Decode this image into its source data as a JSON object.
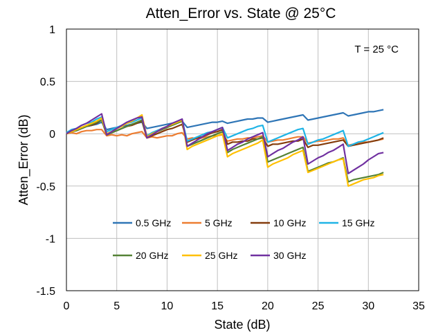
{
  "chart_data": {
    "type": "line",
    "title": "Atten_Error vs. State @ 25°C",
    "xlabel": "State (dB)",
    "ylabel": "Atten_Error (dB)",
    "xlim": [
      0,
      35
    ],
    "ylim": [
      -1.5,
      1
    ],
    "xticks": [
      0,
      5,
      10,
      15,
      20,
      25,
      30,
      35
    ],
    "yticks": [
      1,
      0.5,
      0,
      -0.5,
      -1,
      -1.5
    ],
    "xtick_labels": [
      "0",
      "5",
      "10",
      "15",
      "20",
      "25",
      "30",
      "35"
    ],
    "ytick_labels": [
      "1",
      "0.5",
      "0",
      "-0.5",
      "-1",
      "-1.5"
    ],
    "grid": true,
    "legend_position": "lower-center",
    "annotation": "T = 25 °C",
    "x": [
      0,
      0.5,
      1,
      1.5,
      2,
      2.5,
      3,
      3.5,
      4,
      4.5,
      5,
      5.5,
      6,
      6.5,
      7,
      7.5,
      8,
      8.5,
      9,
      9.5,
      10,
      10.5,
      11,
      11.5,
      12,
      12.5,
      13,
      13.5,
      14,
      14.5,
      15,
      15.5,
      16,
      16.5,
      17,
      17.5,
      18,
      18.5,
      19,
      19.5,
      20,
      20.5,
      21,
      21.5,
      22,
      22.5,
      23,
      23.5,
      24,
      24.5,
      25,
      25.5,
      26,
      26.5,
      27,
      27.5,
      28,
      28.5,
      29,
      29.5,
      30,
      30.5,
      31,
      31.5
    ],
    "series": [
      {
        "name": "0.5 GHz",
        "color": "#2E75B6",
        "values": [
          0.01,
          0.03,
          0.04,
          0.05,
          0.07,
          0.08,
          0.09,
          0.11,
          0.04,
          0.05,
          0.06,
          0.07,
          0.08,
          0.09,
          0.1,
          0.11,
          0.05,
          0.06,
          0.07,
          0.08,
          0.09,
          0.1,
          0.11,
          0.12,
          0.06,
          0.07,
          0.08,
          0.09,
          0.1,
          0.11,
          0.11,
          0.12,
          0.1,
          0.11,
          0.12,
          0.13,
          0.14,
          0.14,
          0.15,
          0.15,
          0.11,
          0.12,
          0.13,
          0.14,
          0.15,
          0.16,
          0.17,
          0.18,
          0.13,
          0.14,
          0.15,
          0.16,
          0.17,
          0.18,
          0.19,
          0.2,
          0.17,
          0.18,
          0.19,
          0.2,
          0.21,
          0.21,
          0.22,
          0.23
        ]
      },
      {
        "name": "5 GHz",
        "color": "#ED7D31",
        "values": [
          0.0,
          0.01,
          0.0,
          0.02,
          0.03,
          0.03,
          0.04,
          0.04,
          -0.02,
          -0.01,
          -0.02,
          -0.01,
          -0.02,
          0.0,
          0.01,
          0.02,
          -0.04,
          -0.03,
          -0.04,
          -0.03,
          -0.02,
          -0.02,
          0.0,
          0.01,
          -0.05,
          -0.04,
          -0.05,
          -0.04,
          -0.03,
          -0.02,
          -0.02,
          -0.01,
          -0.07,
          -0.06,
          -0.05,
          -0.05,
          -0.04,
          -0.04,
          -0.03,
          -0.02,
          -0.08,
          -0.07,
          -0.06,
          -0.06,
          -0.05,
          -0.04,
          -0.03,
          -0.03,
          -0.09,
          -0.08,
          -0.07,
          -0.07,
          -0.06,
          -0.05,
          -0.05,
          -0.04,
          -0.11,
          -0.1,
          -0.09,
          -0.08,
          -0.08,
          -0.07,
          -0.06,
          -0.05
        ]
      },
      {
        "name": "10 GHz",
        "color": "#843C0C",
        "values": [
          0.0,
          0.02,
          0.03,
          0.05,
          0.07,
          0.08,
          0.1,
          0.13,
          -0.01,
          0.01,
          0.03,
          0.05,
          0.07,
          0.08,
          0.1,
          0.12,
          -0.04,
          -0.02,
          0.0,
          0.02,
          0.04,
          0.05,
          0.07,
          0.09,
          -0.08,
          -0.06,
          -0.04,
          -0.03,
          -0.01,
          0.01,
          0.02,
          0.04,
          -0.1,
          -0.08,
          -0.08,
          -0.07,
          -0.07,
          -0.05,
          -0.05,
          -0.04,
          -0.12,
          -0.1,
          -0.1,
          -0.09,
          -0.08,
          -0.07,
          -0.07,
          -0.05,
          -0.13,
          -0.11,
          -0.11,
          -0.1,
          -0.09,
          -0.08,
          -0.07,
          -0.06,
          -0.12,
          -0.11,
          -0.1,
          -0.09,
          -0.08,
          -0.07,
          -0.06,
          -0.04
        ]
      },
      {
        "name": "15 GHz",
        "color": "#1FB4E6",
        "values": [
          0.01,
          0.04,
          0.05,
          0.08,
          0.1,
          0.11,
          0.14,
          0.16,
          0.02,
          0.04,
          0.06,
          0.08,
          0.1,
          0.11,
          0.13,
          0.15,
          -0.02,
          0.01,
          0.03,
          0.05,
          0.07,
          0.09,
          0.11,
          0.13,
          -0.07,
          -0.05,
          -0.03,
          -0.01,
          0.01,
          0.02,
          0.04,
          0.06,
          -0.04,
          -0.02,
          0.0,
          0.02,
          0.04,
          0.05,
          0.07,
          0.08,
          -0.08,
          -0.06,
          -0.04,
          -0.02,
          0.0,
          0.02,
          0.04,
          0.05,
          -0.1,
          -0.08,
          -0.06,
          -0.05,
          -0.03,
          -0.01,
          0.01,
          0.03,
          -0.12,
          -0.1,
          -0.08,
          -0.07,
          -0.05,
          -0.03,
          -0.01,
          0.01
        ]
      },
      {
        "name": "20 GHz",
        "color": "#548235",
        "values": [
          0.0,
          0.02,
          0.03,
          0.05,
          0.07,
          0.09,
          0.11,
          0.13,
          -0.01,
          0.01,
          0.03,
          0.05,
          0.07,
          0.09,
          0.11,
          0.13,
          -0.03,
          0.0,
          0.02,
          0.04,
          0.06,
          0.08,
          0.1,
          0.12,
          -0.12,
          -0.1,
          -0.08,
          -0.06,
          -0.04,
          -0.02,
          0.0,
          0.02,
          -0.18,
          -0.15,
          -0.13,
          -0.11,
          -0.09,
          -0.07,
          -0.05,
          -0.03,
          -0.27,
          -0.25,
          -0.23,
          -0.21,
          -0.19,
          -0.17,
          -0.15,
          -0.13,
          -0.36,
          -0.34,
          -0.32,
          -0.3,
          -0.28,
          -0.27,
          -0.25,
          -0.23,
          -0.46,
          -0.44,
          -0.43,
          -0.42,
          -0.41,
          -0.4,
          -0.39,
          -0.37
        ]
      },
      {
        "name": "25 GHz",
        "color": "#FFC000",
        "values": [
          0.0,
          0.02,
          0.04,
          0.06,
          0.08,
          0.1,
          0.12,
          0.15,
          0.0,
          0.02,
          0.05,
          0.07,
          0.1,
          0.12,
          0.15,
          0.18,
          -0.03,
          0.0,
          0.02,
          0.05,
          0.07,
          0.09,
          0.11,
          0.13,
          -0.15,
          -0.12,
          -0.1,
          -0.08,
          -0.06,
          -0.04,
          -0.02,
          0.0,
          -0.22,
          -0.19,
          -0.17,
          -0.15,
          -0.13,
          -0.11,
          -0.09,
          -0.06,
          -0.32,
          -0.29,
          -0.27,
          -0.25,
          -0.23,
          -0.2,
          -0.18,
          -0.16,
          -0.37,
          -0.35,
          -0.33,
          -0.31,
          -0.29,
          -0.27,
          -0.25,
          -0.24,
          -0.5,
          -0.48,
          -0.46,
          -0.44,
          -0.43,
          -0.42,
          -0.4,
          -0.39
        ]
      },
      {
        "name": "30 GHz",
        "color": "#7030A0",
        "values": [
          0.0,
          0.03,
          0.05,
          0.08,
          0.1,
          0.13,
          0.16,
          0.19,
          -0.01,
          0.02,
          0.05,
          0.08,
          0.11,
          0.13,
          0.15,
          0.16,
          -0.04,
          -0.01,
          0.02,
          0.05,
          0.07,
          0.1,
          0.12,
          0.14,
          -0.12,
          -0.09,
          -0.06,
          -0.03,
          0.0,
          0.02,
          0.04,
          0.06,
          -0.16,
          -0.13,
          -0.1,
          -0.08,
          -0.05,
          -0.03,
          -0.01,
          0.01,
          -0.22,
          -0.19,
          -0.16,
          -0.14,
          -0.11,
          -0.08,
          -0.06,
          -0.03,
          -0.29,
          -0.26,
          -0.23,
          -0.21,
          -0.18,
          -0.16,
          -0.13,
          -0.1,
          -0.38,
          -0.35,
          -0.32,
          -0.29,
          -0.25,
          -0.22,
          -0.19,
          -0.18
        ]
      }
    ]
  }
}
